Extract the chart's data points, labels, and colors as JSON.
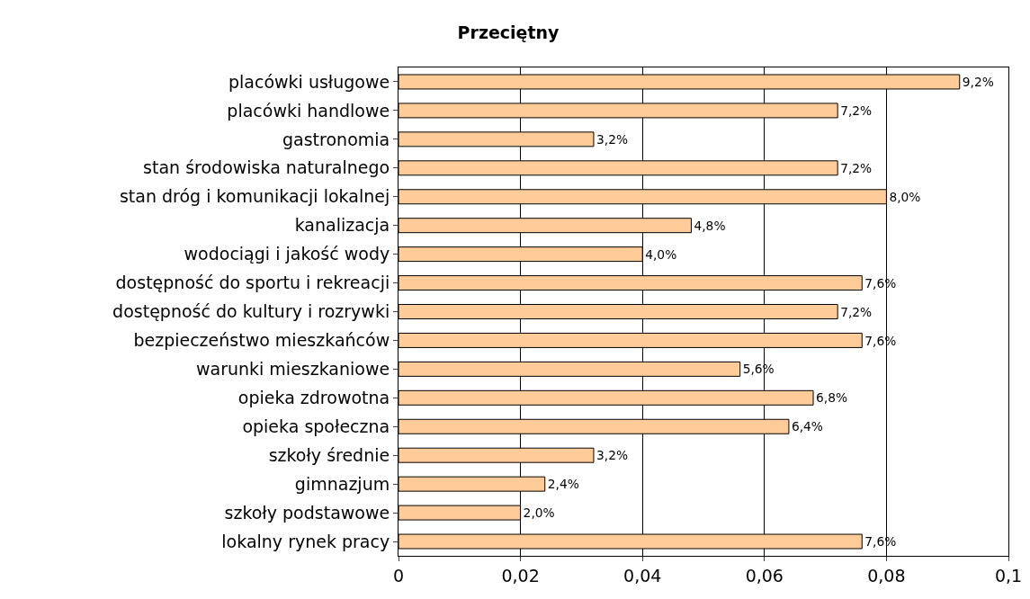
{
  "chart_data": {
    "type": "bar",
    "orientation": "horizontal",
    "title": "Przeciętny",
    "categories": [
      "placówki usługowe",
      "placówki handlowe",
      "gastronomia",
      "stan środowiska naturalnego",
      "stan dróg i komunikacji lokalnej",
      "kanalizacja",
      "wodociągi i jakość wody",
      "dostępność do sportu i rekreacji",
      "dostępność do kultury i rozrywki",
      "bezpieczeństwo mieszkańców",
      "warunki mieszkaniowe",
      "opieka zdrowotna",
      "opieka społeczna",
      "szkoły średnie",
      "gimnazjum",
      "szkoły podstawowe",
      "lokalny rynek pracy"
    ],
    "values": [
      0.092,
      0.072,
      0.032,
      0.072,
      0.08,
      0.048,
      0.04,
      0.076,
      0.072,
      0.076,
      0.056,
      0.068,
      0.064,
      0.032,
      0.024,
      0.02,
      0.076
    ],
    "value_labels": [
      "9,2%",
      "7,2%",
      "3,2%",
      "7,2%",
      "8,0%",
      "4,8%",
      "4,0%",
      "7,6%",
      "7,2%",
      "7,6%",
      "5,6%",
      "6,8%",
      "6,4%",
      "3,2%",
      "2,4%",
      "2,0%",
      "7,6%"
    ],
    "color": "#ffcc99",
    "xlim": [
      0,
      0.1
    ],
    "xticks": [
      0,
      {
        "value": 0.02,
        "label": "0,02"
      },
      {
        "value": 0.04,
        "label": "0,04"
      },
      {
        "value": 0.06,
        "label": "0,06"
      },
      {
        "value": 0.08,
        "label": "0,08"
      },
      {
        "value": 0.1,
        "label": "0,1"
      }
    ],
    "grid": "x"
  }
}
